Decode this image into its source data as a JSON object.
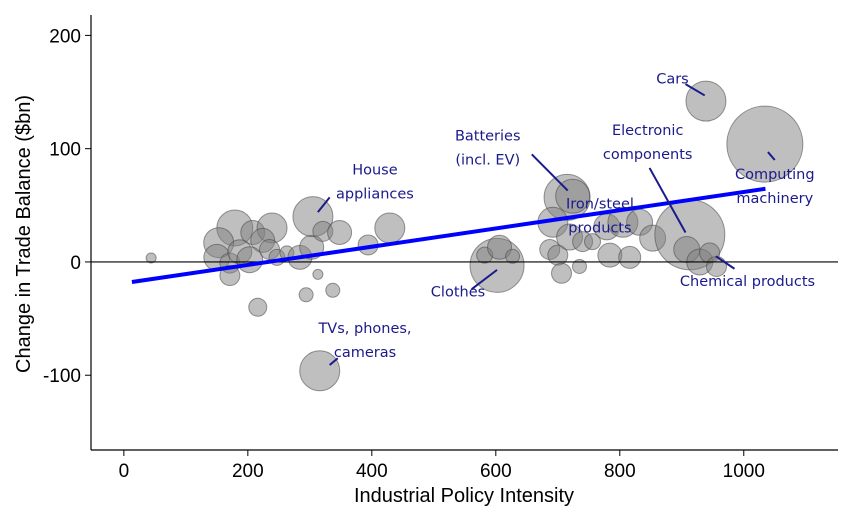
{
  "chart_data": {
    "type": "scatter",
    "title": "",
    "xlabel": "Industrial Policy Intensity",
    "ylabel": "Change in Trade Balance ($bn)",
    "xlim": [
      -53,
      1152
    ],
    "ylim": [
      -166,
      218
    ],
    "xticks": [
      0,
      200,
      400,
      600,
      800,
      1000
    ],
    "yticks": [
      200,
      100,
      0,
      -100
    ],
    "grid": false,
    "reference_line_y": 0,
    "fit_line": {
      "x": [
        13,
        1035
      ],
      "y": [
        -17.7,
        64.6
      ],
      "color": "#0000ff"
    },
    "bubble_color": "#808080",
    "annotation_color": "#1a1a8c",
    "points": [
      {
        "x": 44,
        "y": 3.5,
        "size": 5
      },
      {
        "x": 179,
        "y": 30,
        "size": 18
      },
      {
        "x": 153,
        "y": 17,
        "size": 15
      },
      {
        "x": 208,
        "y": 26,
        "size": 12
      },
      {
        "x": 239,
        "y": 30,
        "size": 15
      },
      {
        "x": 224,
        "y": 19,
        "size": 12
      },
      {
        "x": 150,
        "y": 4,
        "size": 13
      },
      {
        "x": 171,
        "y": -1,
        "size": 10
      },
      {
        "x": 187,
        "y": 9,
        "size": 12
      },
      {
        "x": 203,
        "y": 2,
        "size": 13
      },
      {
        "x": 171,
        "y": -12,
        "size": 10
      },
      {
        "x": 235,
        "y": 11,
        "size": 10
      },
      {
        "x": 247,
        "y": 4,
        "size": 8
      },
      {
        "x": 263,
        "y": 8,
        "size": 7
      },
      {
        "x": 284,
        "y": 4,
        "size": 12
      },
      {
        "x": 303,
        "y": 13,
        "size": 12
      },
      {
        "x": 305,
        "y": 40,
        "size": 20
      },
      {
        "x": 321,
        "y": 27,
        "size": 10
      },
      {
        "x": 348,
        "y": 26,
        "size": 12
      },
      {
        "x": 313,
        "y": -11,
        "size": 5
      },
      {
        "x": 294,
        "y": -29,
        "size": 7
      },
      {
        "x": 337,
        "y": -25,
        "size": 7
      },
      {
        "x": 216,
        "y": -40,
        "size": 9
      },
      {
        "x": 394,
        "y": 15,
        "size": 10
      },
      {
        "x": 429,
        "y": 30,
        "size": 15
      },
      {
        "x": 602,
        "y": -3,
        "size": 27
      },
      {
        "x": 582,
        "y": 6,
        "size": 8
      },
      {
        "x": 606,
        "y": 13,
        "size": 12
      },
      {
        "x": 627,
        "y": 5,
        "size": 7
      },
      {
        "x": 715,
        "y": 57,
        "size": 23
      },
      {
        "x": 724,
        "y": 58,
        "size": 17
      },
      {
        "x": 692,
        "y": 35,
        "size": 15
      },
      {
        "x": 687,
        "y": 11,
        "size": 10
      },
      {
        "x": 700,
        "y": 6,
        "size": 10
      },
      {
        "x": 706,
        "y": -10,
        "size": 10
      },
      {
        "x": 735,
        "y": -4,
        "size": 7
      },
      {
        "x": 719,
        "y": 22,
        "size": 13
      },
      {
        "x": 740,
        "y": 18,
        "size": 10
      },
      {
        "x": 756,
        "y": 18,
        "size": 8
      },
      {
        "x": 784,
        "y": 6,
        "size": 12
      },
      {
        "x": 816,
        "y": 4,
        "size": 11
      },
      {
        "x": 779,
        "y": 31,
        "size": 13
      },
      {
        "x": 805,
        "y": 35,
        "size": 15
      },
      {
        "x": 832,
        "y": 35,
        "size": 13
      },
      {
        "x": 853,
        "y": 21,
        "size": 13
      },
      {
        "x": 913,
        "y": 24,
        "size": 35
      },
      {
        "x": 908,
        "y": 11,
        "size": 13
      },
      {
        "x": 929,
        "y": 0,
        "size": 13
      },
      {
        "x": 945,
        "y": 8,
        "size": 10
      },
      {
        "x": 956,
        "y": -4,
        "size": 10
      },
      {
        "x": 939,
        "y": 142,
        "size": 20
      },
      {
        "x": 1034,
        "y": 104,
        "size": 38
      },
      {
        "x": 316,
        "y": -96,
        "size": 20
      }
    ],
    "annotations": [
      {
        "lines": [
          "House",
          "appliances"
        ],
        "x": 405,
        "y": 71,
        "leader": [
          [
            313,
            44
          ],
          [
            332,
            57
          ]
        ]
      },
      {
        "lines": [
          "Batteries",
          "(incl. EV)"
        ],
        "x": 587,
        "y": 101,
        "leader": [
          [
            658,
            95
          ],
          [
            716,
            63
          ]
        ]
      },
      {
        "lines": [
          "Electronic",
          "components"
        ],
        "x": 845,
        "y": 106,
        "leader": [
          [
            848,
            83
          ],
          [
            906,
            26
          ]
        ]
      },
      {
        "lines": [
          "Cars"
        ],
        "x": 885,
        "y": 162,
        "leader": [
          [
            906,
            157
          ],
          [
            937,
            147
          ]
        ]
      },
      {
        "lines": [
          "Computing",
          "machinery"
        ],
        "x": 1050,
        "y": 67,
        "leader": [
          [
            1039,
            97
          ],
          [
            1050,
            90
          ]
        ]
      },
      {
        "lines": [
          "Iron/steel",
          "products"
        ],
        "x": 768,
        "y": 41,
        "leader": null
      },
      {
        "lines": [
          "Clothes"
        ],
        "x": 539,
        "y": -26,
        "leader": [
          [
            561,
            -24
          ],
          [
            602,
            -7
          ]
        ]
      },
      {
        "lines": [
          "Chemical products"
        ],
        "x": 1006,
        "y": -17,
        "leader": [
          [
            985,
            -6
          ],
          [
            955,
            5
          ]
        ]
      },
      {
        "lines": [
          "TVs, phones,",
          "cameras"
        ],
        "x": 389,
        "y": -69,
        "leader": [
          [
            332,
            -91
          ],
          [
            345,
            -85
          ]
        ]
      }
    ]
  }
}
